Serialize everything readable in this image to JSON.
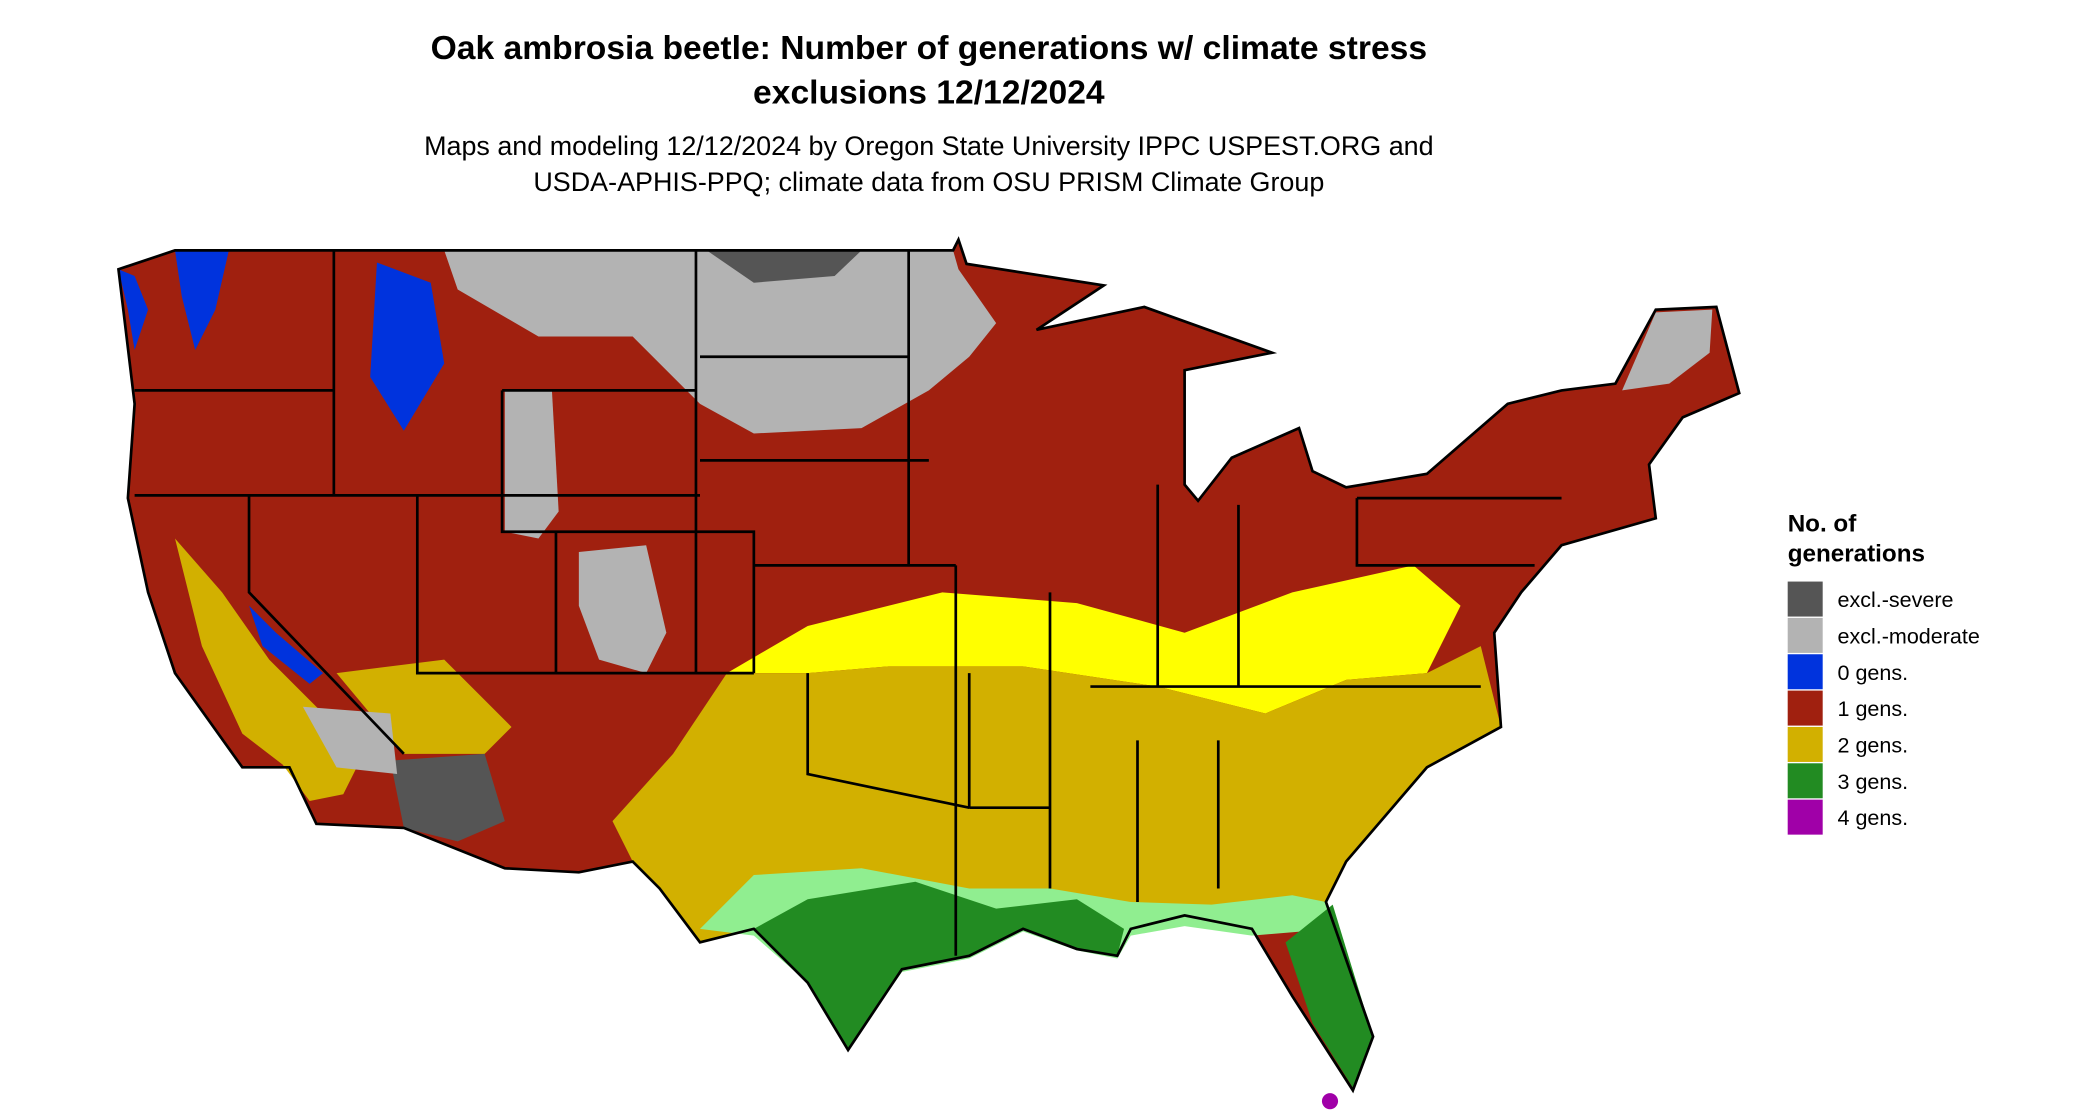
{
  "title_lines": [
    "Oak ambrosia beetle: Number of generations w/ climate stress",
    "exclusions 12/12/2024"
  ],
  "subtitle_lines": [
    "Maps and modeling 12/12/2024 by Oregon State University IPPC USPEST.ORG and",
    "USDA-APHIS-PPQ; climate data from OSU PRISM Climate Group"
  ],
  "legend": {
    "title_lines": [
      "No. of",
      "generations"
    ],
    "items": [
      {
        "label": "excl.-severe",
        "color": "#555555"
      },
      {
        "label": "excl.-moderate",
        "color": "#b3b3b3"
      },
      {
        "label": "0 gens.",
        "color": "#0033dd"
      },
      {
        "label": "1 gens.",
        "color": "#a0200f"
      },
      {
        "label": "2 gens.",
        "color": "#d2b000"
      },
      {
        "label": "3 gens.",
        "color": "#228b22"
      },
      {
        "label": "4 gens.",
        "color": "#a000a8"
      }
    ]
  }
}
